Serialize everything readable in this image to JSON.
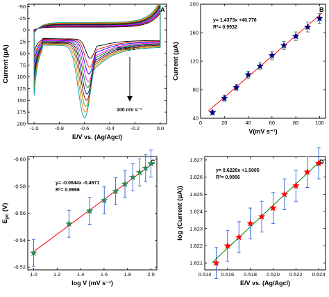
{
  "chart_data": [
    {
      "panel": "A",
      "type": "line",
      "xlabel": "E/V vs. (Ag/Agcl)",
      "ylabel": "Current (µA)",
      "xlim": [
        -1.05,
        0.05
      ],
      "ylim": [
        200,
        -55
      ],
      "y_inverted": true,
      "xticks": [
        -1.0,
        -0.8,
        -0.6,
        -0.4,
        -0.2,
        0.0
      ],
      "xtick_labels": [
        "-1.0",
        "-0.8",
        "-0.6",
        "-0.4",
        "-0.2",
        "0.0"
      ],
      "yticks": [
        -50,
        -25,
        0,
        25,
        50,
        75,
        100,
        125,
        150,
        175,
        200
      ],
      "ytick_labels": [
        "-50",
        "-25",
        "0",
        "25",
        "50",
        "75",
        "100",
        "125",
        "150",
        "175",
        "200"
      ],
      "annotations": [
        "10 mV s⁻¹",
        "100 mV s⁻¹"
      ],
      "scan_rates": [
        10,
        20,
        30,
        40,
        50,
        60,
        70,
        80,
        90,
        100
      ],
      "peak_currents": [
        48,
        68,
        83,
        101,
        113,
        128,
        142,
        155,
        168,
        180
      ],
      "series_colors": [
        "#000000",
        "#ff0000",
        "#0000ff",
        "#ff00ff",
        "#008000",
        "#000080",
        "#800000",
        "#808000",
        "#ff8000",
        "#00a0a0"
      ]
    },
    {
      "panel": "B",
      "type": "scatter",
      "xlabel": "V(mV s⁻¹)",
      "ylabel": "Current (µA)",
      "xlim": [
        0,
        105
      ],
      "ylim": [
        40,
        200
      ],
      "xticks": [
        0,
        20,
        40,
        60,
        80,
        100
      ],
      "yticks": [
        40,
        80,
        120,
        160,
        200
      ],
      "x": [
        10,
        20,
        30,
        40,
        50,
        60,
        70,
        80,
        90,
        100
      ],
      "y": [
        48,
        68,
        83,
        101,
        113,
        128,
        142,
        155,
        168,
        180
      ],
      "error": [
        3,
        4,
        4,
        5,
        5,
        6,
        6,
        6,
        7,
        7
      ],
      "fit": {
        "slope": 1.4373,
        "intercept": 40.776
      },
      "annotations": [
        "y= 1.4373x +40.776",
        "R²= 0.9932"
      ]
    },
    {
      "panel": "C",
      "type": "scatter",
      "xlabel": "log V (mV s⁻¹)",
      "ylabel": "Eₚ꜀ (V)",
      "ylabel_main": "E",
      "ylabel_sub": "pc",
      "ylabel_unit": " (V)",
      "xlim": [
        0.95,
        2.05
      ],
      "ylim": [
        -0.518,
        -0.602
      ],
      "y_inverted": true,
      "xticks": [
        1.0,
        1.2,
        1.4,
        1.6,
        1.8,
        2.0
      ],
      "xtick_labels": [
        "1.0",
        "1.2",
        "1.4",
        "1.6",
        "1.8",
        "2.0"
      ],
      "yticks": [
        -0.52,
        -0.54,
        -0.56,
        -0.58,
        -0.6
      ],
      "ytick_labels": [
        "-0.52",
        "-0.54",
        "-0.56",
        "-0.58",
        "-0.60"
      ],
      "x": [
        1.0,
        1.301,
        1.477,
        1.602,
        1.699,
        1.778,
        1.845,
        1.903,
        1.954,
        2.0
      ],
      "y": [
        -0.5306,
        -0.5522,
        -0.5617,
        -0.5695,
        -0.5762,
        -0.5816,
        -0.5866,
        -0.5902,
        -0.5934,
        -0.5968
      ],
      "error": [
        0.01,
        0.01,
        0.01,
        0.01,
        0.01,
        0.01,
        0.01,
        0.01,
        0.01,
        0.01
      ],
      "fit": {
        "slope": -0.0644,
        "intercept": -0.4671
      },
      "annotations": [
        "y= -0.0644x -0.4671",
        "R²= 0.9966"
      ]
    },
    {
      "panel": "D",
      "type": "scatter",
      "xlabel": "E/V vs. (Ag/Agcl)",
      "ylabel": "log (Current (µA))",
      "xlim": [
        0.514,
        0.5246
      ],
      "ylim": [
        1.8206,
        1.8272
      ],
      "xticks": [
        0.514,
        0.516,
        0.518,
        0.52,
        0.522,
        0.524
      ],
      "xtick_labels": [
        "0.514",
        "0.516",
        "0.518",
        "0.520",
        "0.522",
        "0.524"
      ],
      "yticks": [
        1.821,
        1.822,
        1.823,
        1.824,
        1.825,
        1.826,
        1.827
      ],
      "ytick_labels": [
        "1.821",
        "1.822",
        "1.823",
        "1.824",
        "1.825",
        "1.826",
        "1.827"
      ],
      "x": [
        0.515,
        0.516,
        0.517,
        0.518,
        0.519,
        0.52,
        0.521,
        0.522,
        0.523,
        0.524
      ],
      "y": [
        1.821,
        1.822,
        1.8225,
        1.8233,
        1.8237,
        1.8242,
        1.825,
        1.8255,
        1.8263,
        1.8268
      ],
      "error": [
        0.0009,
        0.0009,
        0.0009,
        0.0009,
        0.0009,
        0.0009,
        0.0009,
        0.0009,
        0.0009,
        0.0009
      ],
      "fit": {
        "slope": 0.6228,
        "intercept": 1.5005
      },
      "annotations": [
        "y= 0.6228x +1.5005",
        "R²= 0.9956"
      ]
    }
  ],
  "colors": {
    "fit_line_B": "#ff0000",
    "marker_B": "#000080",
    "fit_line_C": "#ff0000",
    "marker_C": "#2e8b57",
    "fit_line_D": "#008000",
    "marker_D": "#ff0000",
    "error_bars": "#1f5fd6"
  }
}
